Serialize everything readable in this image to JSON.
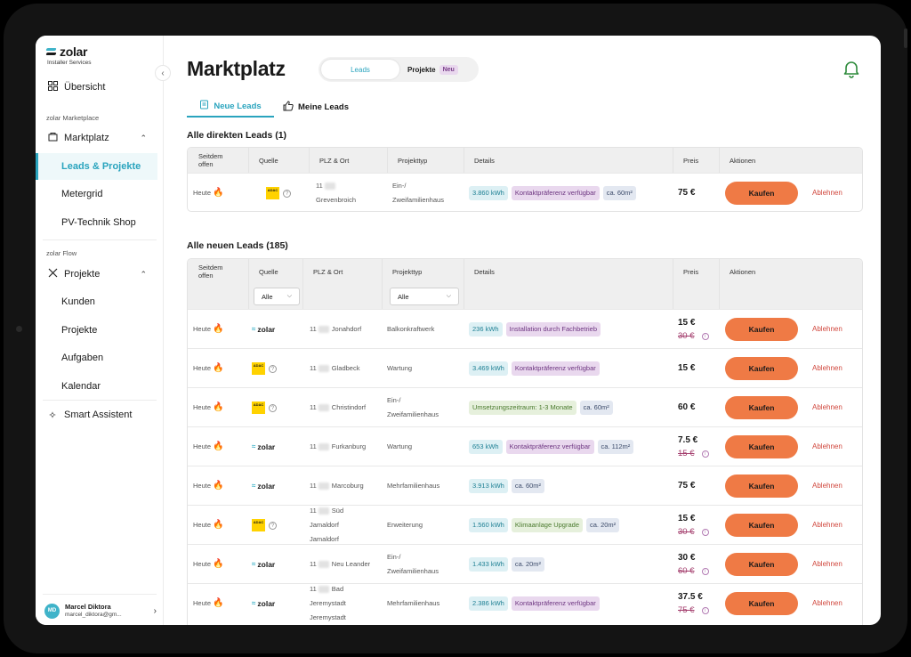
{
  "brand": {
    "name": "zolar",
    "subtitle": "Installer Services"
  },
  "sidebar": {
    "overview": "Übersicht",
    "section_marketplace": "zolar Marketplace",
    "marketplace": "Marktplatz",
    "leads_projects": "Leads & Projekte",
    "metergrid": "Metergrid",
    "pv_shop": "PV-Technik Shop",
    "section_flow": "zolar Flow",
    "projects": "Projekte",
    "customers": "Kunden",
    "projects_sub": "Projekte",
    "tasks": "Aufgaben",
    "calendar": "Kalendar",
    "assistant": "Smart Assistent"
  },
  "user": {
    "initials": "MD",
    "name": "Marcel Diktora",
    "email": "marcel_diktora@gm..."
  },
  "header": {
    "title": "Marktplatz",
    "toggle_leads": "Leads",
    "toggle_projects": "Projekte",
    "new_badge": "Neu"
  },
  "tabs": {
    "new_leads": "Neue Leads",
    "my_leads": "Meine Leads"
  },
  "columns": {
    "since": "Seitdem offen",
    "source": "Quelle",
    "plz": "PLZ & Ort",
    "type": "Projekttyp",
    "details": "Details",
    "price": "Preis",
    "actions": "Aktionen"
  },
  "filters": {
    "source": "Alle",
    "type": "Alle"
  },
  "direct": {
    "heading": "Alle direkten Leads (1)",
    "rows": [
      {
        "since": "Heute",
        "source": "ADAC",
        "plz": "11",
        "city": [
          "Grevenbroich"
        ],
        "type": [
          "Ein-/",
          "Zweifamilienhaus"
        ],
        "chips": [
          [
            "3.860 kWh",
            "blue"
          ],
          [
            "Kontaktpräferenz verfügbar",
            "purple"
          ],
          [
            "ca. 60m²",
            "gray"
          ]
        ],
        "price": "75 €",
        "old_price": ""
      }
    ]
  },
  "all": {
    "heading": "Alle neuen Leads (185)",
    "rows": [
      {
        "since": "Heute",
        "source": "zolar",
        "plz": "11",
        "city": [
          "Jonahdorf"
        ],
        "type": [
          "Balkonkraftwerk"
        ],
        "chips": [
          [
            "236 kWh",
            "blue"
          ],
          [
            "Installation durch Fachbetrieb",
            "purple"
          ]
        ],
        "price": "15 €",
        "old_price": "30 €"
      },
      {
        "since": "Heute",
        "source": "ADAC",
        "plz": "11",
        "city": [
          "Gladbeck"
        ],
        "type": [
          "Wartung"
        ],
        "chips": [
          [
            "3.469 kWh",
            "blue"
          ],
          [
            "Kontaktpräferenz verfügbar",
            "purple"
          ]
        ],
        "price": "15 €",
        "old_price": ""
      },
      {
        "since": "Heute",
        "source": "ADAC",
        "plz": "11",
        "city": [
          "Christindorf"
        ],
        "type": [
          "Ein-/",
          "Zweifamilienhaus"
        ],
        "chips": [
          [
            "Umsetzungszeitraum: 1-3 Monate",
            "green"
          ],
          [
            "ca. 60m²",
            "gray"
          ]
        ],
        "price": "60 €",
        "old_price": ""
      },
      {
        "since": "Heute",
        "source": "zolar",
        "plz": "11",
        "city": [
          "Furkanburg"
        ],
        "type": [
          "Wartung"
        ],
        "chips": [
          [
            "653 kWh",
            "blue"
          ],
          [
            "Kontaktpräferenz verfügbar",
            "purple"
          ],
          [
            "ca. 112m²",
            "gray"
          ]
        ],
        "price": "7.5 €",
        "old_price": "15 €"
      },
      {
        "since": "Heute",
        "source": "zolar",
        "plz": "11",
        "city": [
          "Marcoburg"
        ],
        "type": [
          "Mehrfamilienhaus"
        ],
        "chips": [
          [
            "3.913 kWh",
            "blue"
          ],
          [
            "ca. 60m²",
            "gray"
          ]
        ],
        "price": "75 €",
        "old_price": ""
      },
      {
        "since": "Heute",
        "source": "ADAC",
        "plz": "11",
        "city": [
          "Süd",
          "Jamaldorf"
        ],
        "type": [
          "Erweiterung"
        ],
        "chips": [
          [
            "1.560 kWh",
            "blue"
          ],
          [
            "Klimaanlage Upgrade",
            "green"
          ],
          [
            "ca. 20m²",
            "gray"
          ]
        ],
        "price": "15 €",
        "old_price": "30 €"
      },
      {
        "since": "Heute",
        "source": "zolar",
        "plz": "11",
        "city": [
          "Neu Leander"
        ],
        "type": [
          "Ein-/",
          "Zweifamilienhaus"
        ],
        "chips": [
          [
            "1.433 kWh",
            "blue"
          ],
          [
            "ca. 20m²",
            "gray"
          ]
        ],
        "price": "30 €",
        "old_price": "60 €"
      },
      {
        "since": "Heute",
        "source": "zolar",
        "plz": "11",
        "city": [
          "Bad",
          "Jeremystadt"
        ],
        "type": [
          "Mehrfamilienhaus"
        ],
        "chips": [
          [
            "2.386 kWh",
            "blue"
          ],
          [
            "Kontaktpräferenz verfügbar",
            "purple"
          ]
        ],
        "price": "37.5 €",
        "old_price": "75 €"
      }
    ]
  },
  "actions": {
    "buy": "Kaufen",
    "reject": "Ablehnen"
  },
  "colors": {
    "accent": "#2aa4be",
    "buy": "#ef7a45",
    "reject": "#d0453b",
    "fire": "#ee6b1f",
    "adac": "#ffd200"
  }
}
